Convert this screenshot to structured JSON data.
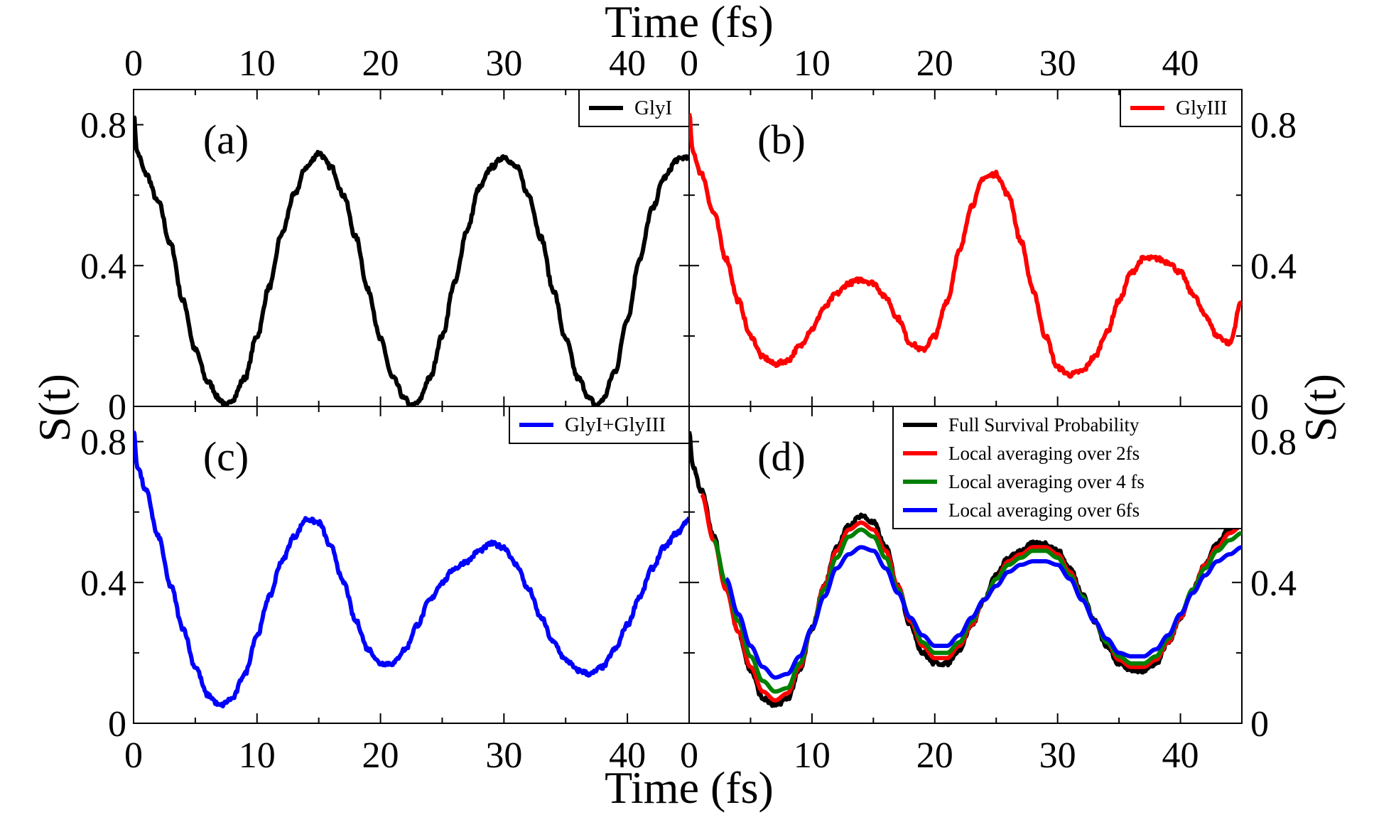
{
  "figure": {
    "top_axis_label": "Time (fs)",
    "bottom_axis_label": "Time (fs)",
    "left_axis_label": "S(t)",
    "right_axis_label": "S(t)"
  },
  "chart_data": [
    {
      "id": "a",
      "panel_label": "(a)",
      "type": "line",
      "title": "",
      "xlabel": "Time (fs)",
      "ylabel": "S(t)",
      "xlim": [
        0,
        45
      ],
      "ylim": [
        0,
        0.9
      ],
      "xticks": [
        "0",
        "10",
        "20",
        "30",
        "40"
      ],
      "yticks": [
        "0",
        "0.4",
        "0.8"
      ],
      "legend_position": "top-right",
      "series": [
        {
          "name": "GlyI",
          "color": "#000000",
          "x": [
            0,
            0.3,
            1,
            2,
            3,
            4,
            5,
            6,
            7,
            7.5,
            8,
            9,
            10,
            11,
            12,
            13,
            14,
            15,
            16,
            17,
            18,
            19,
            20,
            21,
            22,
            22.5,
            23,
            24,
            25,
            26,
            27,
            28,
            29,
            30,
            31,
            32,
            33,
            34,
            35,
            36,
            37,
            37.5,
            38,
            39,
            40,
            41,
            42,
            43,
            44,
            44.9
          ],
          "y": [
            0.83,
            0.72,
            0.66,
            0.58,
            0.46,
            0.3,
            0.16,
            0.07,
            0.02,
            0.0,
            0.02,
            0.08,
            0.2,
            0.34,
            0.49,
            0.6,
            0.68,
            0.72,
            0.68,
            0.6,
            0.48,
            0.33,
            0.19,
            0.08,
            0.02,
            0.0,
            0.01,
            0.08,
            0.2,
            0.35,
            0.5,
            0.62,
            0.68,
            0.71,
            0.68,
            0.6,
            0.48,
            0.33,
            0.19,
            0.08,
            0.02,
            0.0,
            0.02,
            0.1,
            0.25,
            0.42,
            0.56,
            0.65,
            0.7,
            0.71
          ]
        }
      ]
    },
    {
      "id": "b",
      "panel_label": "(b)",
      "type": "line",
      "title": "",
      "xlabel": "Time (fs)",
      "ylabel": "S(t)",
      "xlim": [
        0,
        45
      ],
      "ylim": [
        0,
        0.9
      ],
      "xticks": [
        "0",
        "10",
        "20",
        "30",
        "40"
      ],
      "yticks": [
        "0",
        "0.4",
        "0.8"
      ],
      "legend_position": "top-right",
      "series": [
        {
          "name": "GlyIII",
          "color": "#ff0000",
          "x": [
            0,
            0.3,
            1,
            2,
            3,
            4,
            5,
            6,
            7,
            8,
            9,
            10,
            11,
            12,
            13,
            14,
            15,
            16,
            17,
            18,
            19,
            20,
            21,
            22,
            23,
            24,
            25,
            26,
            27,
            28,
            29,
            30,
            31,
            32,
            33,
            34,
            35,
            36,
            37,
            38,
            39,
            40,
            41,
            42,
            43,
            44,
            45
          ],
          "y": [
            0.83,
            0.72,
            0.66,
            0.55,
            0.42,
            0.3,
            0.2,
            0.14,
            0.12,
            0.13,
            0.17,
            0.22,
            0.28,
            0.32,
            0.35,
            0.36,
            0.35,
            0.31,
            0.25,
            0.18,
            0.16,
            0.2,
            0.3,
            0.44,
            0.57,
            0.65,
            0.66,
            0.6,
            0.47,
            0.33,
            0.2,
            0.11,
            0.09,
            0.1,
            0.14,
            0.21,
            0.3,
            0.38,
            0.42,
            0.42,
            0.41,
            0.38,
            0.32,
            0.26,
            0.2,
            0.18,
            0.3
          ]
        }
      ]
    },
    {
      "id": "c",
      "panel_label": "(c)",
      "type": "line",
      "title": "",
      "xlabel": "Time (fs)",
      "ylabel": "S(t)",
      "xlim": [
        0,
        45
      ],
      "ylim": [
        0,
        0.9
      ],
      "xticks": [
        "0",
        "10",
        "20",
        "30",
        "40"
      ],
      "yticks": [
        "0",
        "0.4",
        "0.8"
      ],
      "legend_position": "top-right",
      "series": [
        {
          "name": "GlyI+GlyIII",
          "color": "#0000ff",
          "x": [
            0,
            0.3,
            1,
            2,
            3,
            4,
            5,
            6,
            7,
            8,
            9,
            10,
            11,
            12,
            13,
            14,
            15,
            16,
            17,
            18,
            19,
            20,
            21,
            22,
            23,
            24,
            25,
            26,
            27,
            28,
            29,
            30,
            31,
            32,
            33,
            34,
            35,
            36,
            37,
            38,
            39,
            40,
            41,
            42,
            43,
            44,
            45
          ],
          "y": [
            0.83,
            0.73,
            0.66,
            0.53,
            0.39,
            0.27,
            0.16,
            0.08,
            0.05,
            0.07,
            0.14,
            0.25,
            0.36,
            0.46,
            0.53,
            0.58,
            0.57,
            0.5,
            0.4,
            0.29,
            0.21,
            0.17,
            0.17,
            0.21,
            0.28,
            0.35,
            0.4,
            0.44,
            0.46,
            0.49,
            0.51,
            0.5,
            0.45,
            0.38,
            0.3,
            0.23,
            0.18,
            0.15,
            0.14,
            0.16,
            0.21,
            0.28,
            0.36,
            0.44,
            0.5,
            0.54,
            0.58
          ]
        }
      ]
    },
    {
      "id": "d",
      "panel_label": "(d)",
      "type": "line",
      "title": "",
      "xlabel": "Time (fs)",
      "ylabel": "S(t)",
      "xlim": [
        0,
        45
      ],
      "ylim": [
        0,
        0.9
      ],
      "xticks": [
        "0",
        "10",
        "20",
        "30",
        "40"
      ],
      "yticks": [
        "0",
        "0.4",
        "0.8"
      ],
      "legend_position": "top-right",
      "series": [
        {
          "name": "Full Survival Probability",
          "color": "#000000",
          "x": [
            0,
            0.3,
            1,
            2,
            3,
            4,
            5,
            6,
            7,
            8,
            9,
            10,
            11,
            12,
            13,
            14,
            15,
            16,
            17,
            18,
            19,
            20,
            21,
            22,
            23,
            24,
            25,
            26,
            27,
            28,
            29,
            30,
            31,
            32,
            33,
            34,
            35,
            36,
            37,
            38,
            39,
            40,
            41,
            42,
            43,
            44,
            45
          ],
          "y": [
            0.83,
            0.73,
            0.66,
            0.53,
            0.39,
            0.26,
            0.15,
            0.07,
            0.05,
            0.07,
            0.15,
            0.27,
            0.39,
            0.5,
            0.56,
            0.59,
            0.57,
            0.5,
            0.39,
            0.28,
            0.2,
            0.17,
            0.17,
            0.21,
            0.28,
            0.35,
            0.42,
            0.47,
            0.49,
            0.51,
            0.51,
            0.49,
            0.44,
            0.37,
            0.29,
            0.22,
            0.17,
            0.15,
            0.15,
            0.17,
            0.23,
            0.3,
            0.38,
            0.45,
            0.51,
            0.55,
            0.58
          ]
        },
        {
          "name": "Local averaging over 2fs",
          "color": "#ff0000",
          "x": [
            1,
            2,
            3,
            4,
            5,
            6,
            7,
            8,
            9,
            10,
            11,
            12,
            13,
            14,
            15,
            16,
            17,
            18,
            19,
            20,
            21,
            22,
            23,
            24,
            25,
            26,
            27,
            28,
            29,
            30,
            31,
            32,
            33,
            34,
            35,
            36,
            37,
            38,
            39,
            40,
            41,
            42,
            43,
            44,
            45
          ],
          "y": [
            0.65,
            0.52,
            0.38,
            0.26,
            0.16,
            0.09,
            0.065,
            0.085,
            0.16,
            0.27,
            0.39,
            0.49,
            0.55,
            0.57,
            0.55,
            0.49,
            0.39,
            0.29,
            0.22,
            0.185,
            0.185,
            0.22,
            0.28,
            0.35,
            0.41,
            0.46,
            0.48,
            0.5,
            0.5,
            0.48,
            0.43,
            0.36,
            0.29,
            0.23,
            0.18,
            0.16,
            0.16,
            0.18,
            0.23,
            0.3,
            0.38,
            0.45,
            0.5,
            0.54,
            0.56
          ]
        },
        {
          "name": "Local averaging over 4 fs",
          "color": "#008000",
          "x": [
            2,
            3,
            4,
            5,
            6,
            7,
            8,
            9,
            10,
            11,
            12,
            13,
            14,
            15,
            16,
            17,
            18,
            19,
            20,
            21,
            22,
            23,
            24,
            25,
            26,
            27,
            28,
            29,
            30,
            31,
            32,
            33,
            34,
            35,
            36,
            37,
            38,
            39,
            40,
            41,
            42,
            43,
            44,
            45
          ],
          "y": [
            0.52,
            0.4,
            0.29,
            0.19,
            0.12,
            0.09,
            0.1,
            0.17,
            0.27,
            0.38,
            0.47,
            0.53,
            0.55,
            0.53,
            0.47,
            0.38,
            0.3,
            0.23,
            0.2,
            0.2,
            0.23,
            0.29,
            0.35,
            0.41,
            0.45,
            0.47,
            0.49,
            0.49,
            0.47,
            0.42,
            0.36,
            0.29,
            0.23,
            0.19,
            0.17,
            0.17,
            0.19,
            0.24,
            0.31,
            0.38,
            0.44,
            0.49,
            0.52,
            0.54
          ]
        },
        {
          "name": "Local averaging over 6fs",
          "color": "#0000ff",
          "x": [
            3,
            4,
            5,
            6,
            7,
            8,
            9,
            10,
            11,
            12,
            13,
            14,
            15,
            16,
            17,
            18,
            19,
            20,
            21,
            22,
            23,
            24,
            25,
            26,
            27,
            28,
            29,
            30,
            31,
            32,
            33,
            34,
            35,
            36,
            37,
            38,
            39,
            40,
            41,
            42,
            43,
            44,
            45
          ],
          "y": [
            0.41,
            0.31,
            0.22,
            0.16,
            0.13,
            0.14,
            0.19,
            0.27,
            0.36,
            0.44,
            0.48,
            0.5,
            0.49,
            0.44,
            0.37,
            0.3,
            0.25,
            0.22,
            0.22,
            0.25,
            0.3,
            0.35,
            0.39,
            0.43,
            0.45,
            0.46,
            0.46,
            0.45,
            0.41,
            0.35,
            0.29,
            0.24,
            0.2,
            0.19,
            0.19,
            0.21,
            0.25,
            0.31,
            0.37,
            0.42,
            0.46,
            0.48,
            0.5
          ]
        }
      ]
    }
  ]
}
